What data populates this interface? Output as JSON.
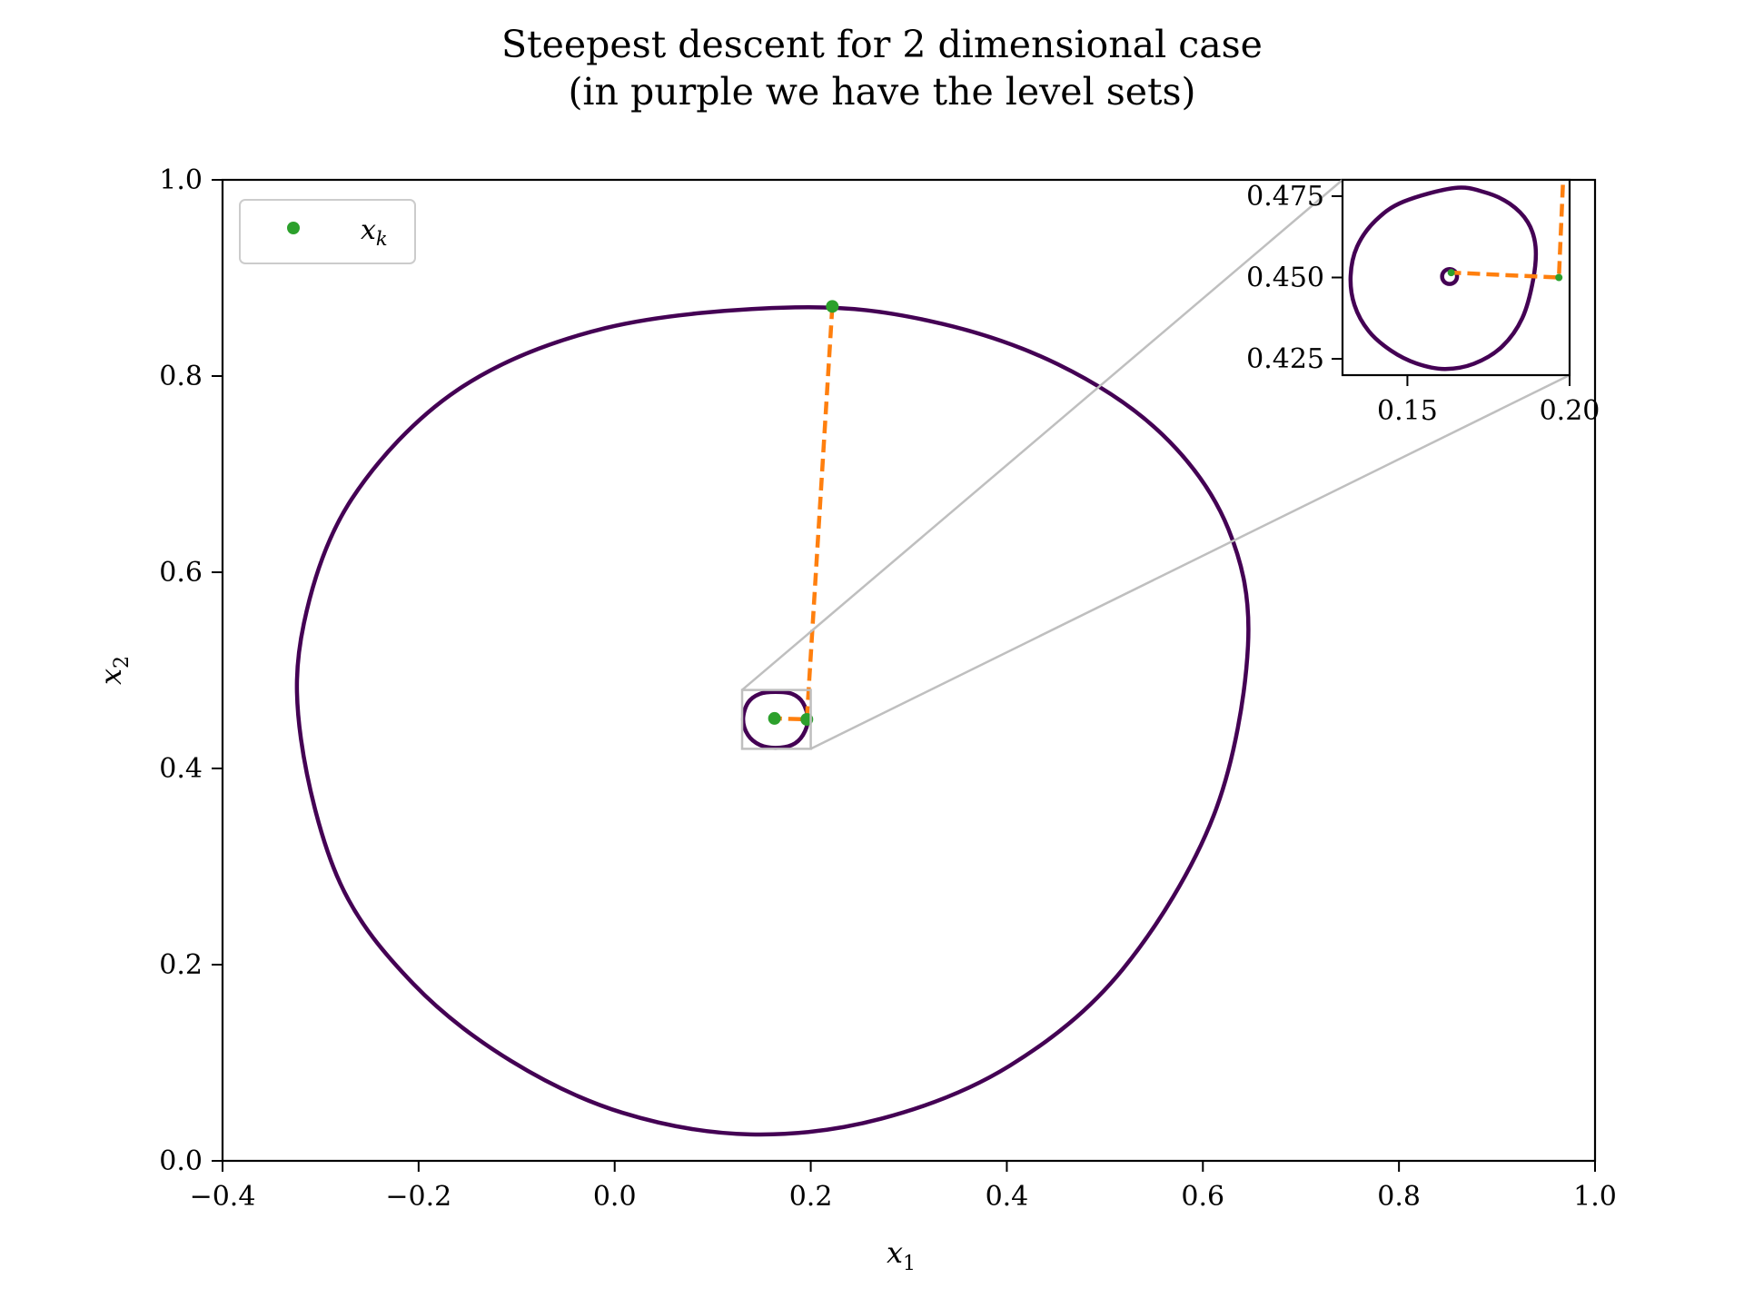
{
  "chart_data": {
    "type": "line",
    "title": "Steepest descent for 2 dimensional case",
    "subtitle": "(in purple we have the level sets)",
    "xlabel": "x",
    "xlabel_sub": "1",
    "ylabel": "x",
    "ylabel_sub": "2",
    "xlim": [
      -0.4,
      1.0
    ],
    "ylim": [
      0.0,
      1.0
    ],
    "xticks": [
      -0.4,
      -0.2,
      0.0,
      0.2,
      0.4,
      0.6,
      0.8,
      1.0
    ],
    "xtick_labels": [
      "−0.4",
      "−0.2",
      "0.0",
      "0.2",
      "0.4",
      "0.6",
      "0.8",
      "1.0"
    ],
    "yticks": [
      0.0,
      0.2,
      0.4,
      0.6,
      0.8,
      1.0
    ],
    "ytick_labels": [
      "0.0",
      "0.2",
      "0.4",
      "0.6",
      "0.8",
      "1.0"
    ],
    "grid": false,
    "legend": {
      "position": "upper-left",
      "entry": "x",
      "entry_sub": "k"
    },
    "colors": {
      "level_set": "#440154",
      "path": "#ff7f0e",
      "points": "#2ca02c",
      "inset_marker": "#bfbfbf"
    },
    "level_sets": [
      {
        "points": [
          [
            0.184,
            0.87
          ],
          [
            0.322,
            0.856
          ],
          [
            0.452,
            0.812
          ],
          [
            0.559,
            0.74
          ],
          [
            0.626,
            0.644
          ],
          [
            0.646,
            0.525
          ],
          [
            0.611,
            0.352
          ],
          [
            0.518,
            0.195
          ],
          [
            0.403,
            0.097
          ],
          [
            0.272,
            0.043
          ],
          [
            0.138,
            0.027
          ],
          [
            0.008,
            0.049
          ],
          [
            -0.106,
            0.102
          ],
          [
            -0.205,
            0.18
          ],
          [
            -0.28,
            0.283
          ],
          [
            -0.32,
            0.43
          ],
          [
            -0.317,
            0.548
          ],
          [
            -0.268,
            0.675
          ],
          [
            -0.16,
            0.786
          ],
          [
            -0.009,
            0.849
          ],
          [
            0.184,
            0.87
          ]
        ]
      },
      {
        "points": [
          [
            0.164,
            0.478
          ],
          [
            0.181,
            0.476
          ],
          [
            0.192,
            0.467
          ],
          [
            0.197,
            0.45
          ],
          [
            0.192,
            0.434
          ],
          [
            0.181,
            0.424
          ],
          [
            0.164,
            0.421
          ],
          [
            0.148,
            0.424
          ],
          [
            0.136,
            0.434
          ],
          [
            0.131,
            0.45
          ],
          [
            0.136,
            0.467
          ],
          [
            0.148,
            0.476
          ],
          [
            0.164,
            0.478
          ]
        ]
      }
    ],
    "series": [
      {
        "name": "x_k",
        "x": [
          0.222,
          0.196,
          0.163
        ],
        "y": [
          0.871,
          0.45,
          0.451
        ]
      }
    ],
    "inset": {
      "xlim": [
        0.13,
        0.2
      ],
      "ylim": [
        0.42,
        0.48
      ],
      "xticks": [
        0.15,
        0.2
      ],
      "xtick_labels": [
        "0.15",
        "0.20"
      ],
      "yticks": [
        0.425,
        0.45,
        0.475
      ],
      "ytick_labels": [
        "0.425",
        "0.450",
        "0.475"
      ],
      "level_sets": [
        {
          "points": [
            [
              0.1645,
              0.4775
            ],
            [
              0.1738,
              0.4762
            ],
            [
              0.1815,
              0.4727
            ],
            [
              0.1871,
              0.467
            ],
            [
              0.1895,
              0.4595
            ],
            [
              0.1888,
              0.4495
            ],
            [
              0.1854,
              0.4375
            ],
            [
              0.1791,
              0.4287
            ],
            [
              0.1705,
              0.4235
            ],
            [
              0.1615,
              0.4219
            ],
            [
              0.1528,
              0.4236
            ],
            [
              0.145,
              0.4275
            ],
            [
              0.1381,
              0.4335
            ],
            [
              0.1337,
              0.4415
            ],
            [
              0.1325,
              0.4505
            ],
            [
              0.1345,
              0.4595
            ],
            [
              0.1402,
              0.4675
            ],
            [
              0.1488,
              0.4733
            ],
            [
              0.1645,
              0.4775
            ]
          ]
        },
        {
          "center": [
            0.163,
            0.4503
          ],
          "radius": 0.0023
        }
      ],
      "series": [
        {
          "x": [
            0.2,
            0.198,
            0.1967,
            0.1635
          ],
          "y": [
            0.49,
            0.48,
            0.45,
            0.4515
          ]
        }
      ],
      "points": [
        [
          0.1967,
          0.45
        ],
        [
          0.1635,
          0.4515
        ]
      ]
    }
  }
}
